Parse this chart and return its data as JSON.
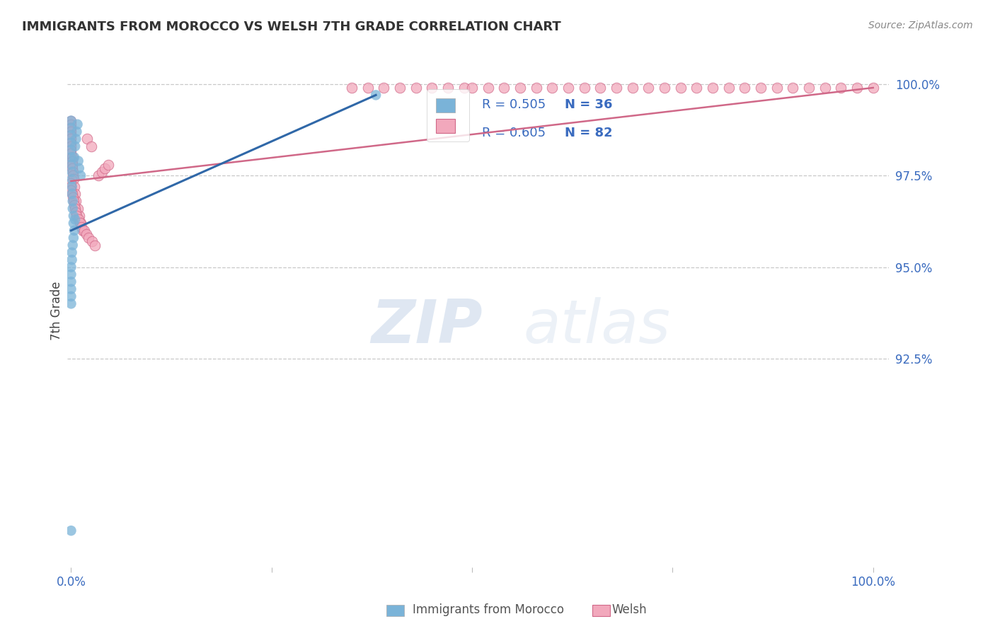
{
  "title": "IMMIGRANTS FROM MOROCCO VS WELSH 7TH GRADE CORRELATION CHART",
  "source": "Source: ZipAtlas.com",
  "ylabel": "7th Grade",
  "ylabel_right_labels": [
    "100.0%",
    "97.5%",
    "95.0%",
    "92.5%"
  ],
  "ylabel_right_values": [
    1.0,
    0.975,
    0.95,
    0.925
  ],
  "color_blue": "#7ab3d8",
  "color_pink": "#f2a8bc",
  "color_blue_line": "#3068a8",
  "color_pink_line": "#d06888",
  "color_text_blue": "#3a6bbf",
  "color_grid": "#c8c8c8",
  "blue_trend_x": [
    0.0,
    0.38
  ],
  "blue_trend_y": [
    0.96,
    0.997
  ],
  "pink_trend_x": [
    0.0,
    1.0
  ],
  "pink_trend_y": [
    0.9735,
    0.999
  ],
  "xmin": -0.005,
  "xmax": 1.02,
  "ymin": 0.868,
  "ymax": 1.008,
  "background_color": "#ffffff",
  "blue_x": [
    0.0,
    0.0,
    0.0,
    0.0,
    0.0,
    0.0,
    0.0,
    0.001,
    0.001,
    0.001,
    0.001,
    0.002,
    0.002,
    0.003,
    0.003,
    0.004,
    0.005,
    0.006,
    0.007,
    0.008,
    0.009,
    0.01,
    0.012,
    0.38,
    0.0,
    0.0,
    0.0,
    0.0,
    0.0,
    0.0,
    0.001,
    0.001,
    0.002,
    0.003,
    0.004,
    0.005
  ],
  "blue_y": [
    0.99,
    0.988,
    0.986,
    0.984,
    0.982,
    0.98,
    0.978,
    0.976,
    0.974,
    0.972,
    0.97,
    0.968,
    0.966,
    0.964,
    0.962,
    0.98,
    0.983,
    0.985,
    0.987,
    0.989,
    0.979,
    0.977,
    0.975,
    0.997,
    0.95,
    0.948,
    0.946,
    0.944,
    0.942,
    0.94,
    0.952,
    0.954,
    0.956,
    0.958,
    0.96,
    0.963
  ],
  "pink_x": [
    0.0,
    0.0,
    0.0,
    0.0,
    0.0,
    0.0,
    0.0,
    0.0,
    0.0,
    0.0,
    0.001,
    0.001,
    0.001,
    0.001,
    0.002,
    0.002,
    0.003,
    0.004,
    0.005,
    0.006,
    0.008,
    0.01,
    0.012,
    0.015,
    0.02,
    0.025,
    0.35,
    0.37,
    0.39,
    0.41,
    0.43,
    0.45,
    0.47,
    0.49,
    0.5,
    0.52,
    0.54,
    0.56,
    0.58,
    0.6,
    0.62,
    0.64,
    0.66,
    0.68,
    0.7,
    0.72,
    0.74,
    0.76,
    0.78,
    0.8,
    0.82,
    0.84,
    0.86,
    0.88,
    0.9,
    0.92,
    0.94,
    0.96,
    0.98,
    1.0,
    0.0,
    0.0,
    0.0,
    0.001,
    0.002,
    0.003,
    0.004,
    0.005,
    0.006,
    0.007,
    0.009,
    0.011,
    0.013,
    0.016,
    0.019,
    0.022,
    0.026,
    0.03,
    0.034,
    0.038,
    0.042,
    0.046
  ],
  "pink_y": [
    0.99,
    0.989,
    0.988,
    0.987,
    0.986,
    0.985,
    0.984,
    0.983,
    0.982,
    0.981,
    0.98,
    0.979,
    0.978,
    0.977,
    0.976,
    0.975,
    0.974,
    0.972,
    0.97,
    0.968,
    0.966,
    0.964,
    0.962,
    0.96,
    0.985,
    0.983,
    0.999,
    0.999,
    0.999,
    0.999,
    0.999,
    0.999,
    0.999,
    0.999,
    0.999,
    0.999,
    0.999,
    0.999,
    0.999,
    0.999,
    0.999,
    0.999,
    0.999,
    0.999,
    0.999,
    0.999,
    0.999,
    0.999,
    0.999,
    0.999,
    0.999,
    0.999,
    0.999,
    0.999,
    0.999,
    0.999,
    0.999,
    0.999,
    0.999,
    0.999,
    0.973,
    0.972,
    0.971,
    0.97,
    0.969,
    0.968,
    0.967,
    0.966,
    0.965,
    0.964,
    0.963,
    0.962,
    0.961,
    0.96,
    0.959,
    0.958,
    0.957,
    0.956,
    0.975,
    0.976,
    0.977,
    0.978
  ],
  "blue_lone_x": [
    0.0
  ],
  "blue_lone_y": [
    0.878
  ]
}
